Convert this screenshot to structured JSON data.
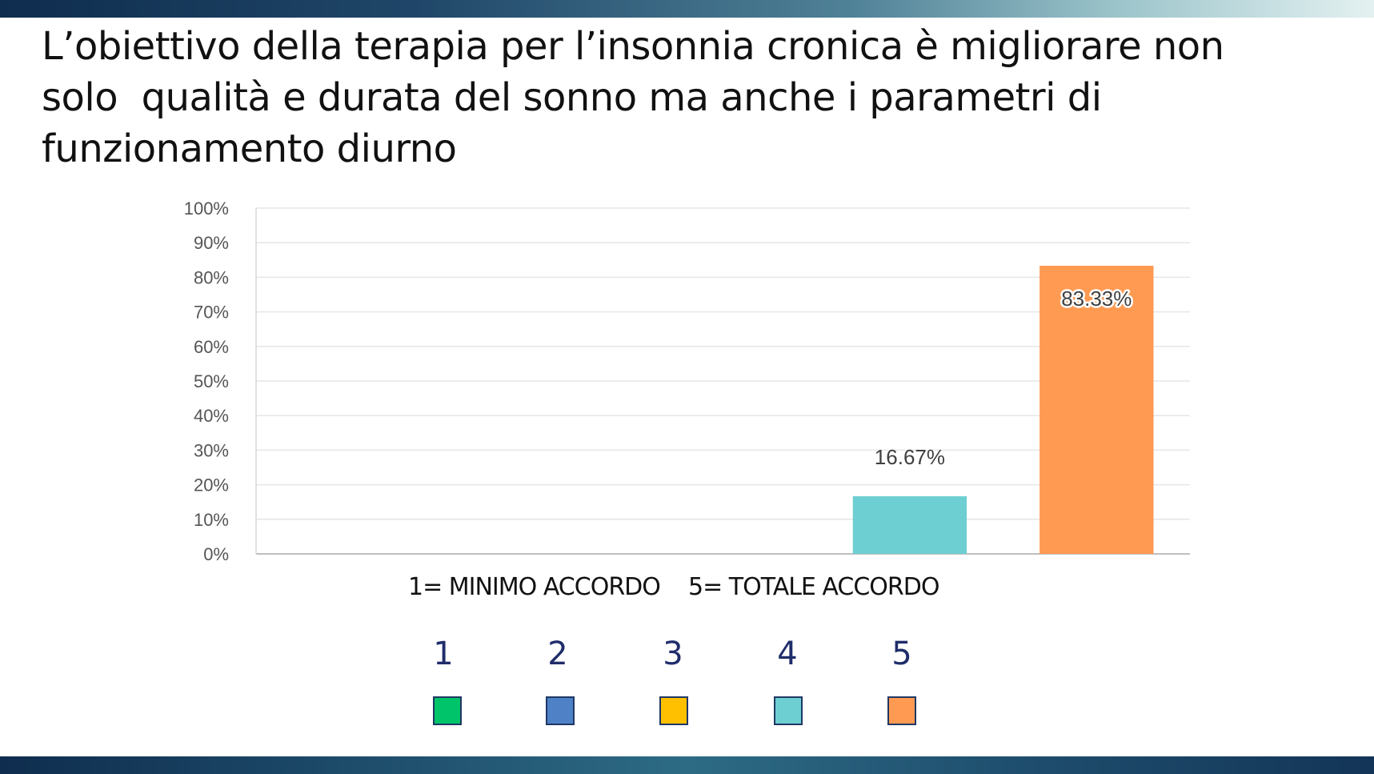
{
  "slide": {
    "title": "L’obiettivo della terapia per l’insonnia cronica è migliorare non\nsolo  qualità e durata del sonno ma anche i parametri di\nfunzionamento diurno"
  },
  "chart_data": {
    "type": "bar",
    "categories": [
      "1",
      "2",
      "3",
      "4",
      "5"
    ],
    "values": [
      0,
      0,
      0,
      16.67,
      83.33
    ],
    "data_labels": [
      "",
      "",
      "",
      "16.67%",
      "83.33%"
    ],
    "colors": [
      "#00c46a",
      "#4f81c7",
      "#ffc000",
      "#6ecfd2",
      "#ff9a52"
    ],
    "ylim": [
      0,
      100
    ],
    "yticks": [
      "0%",
      "10%",
      "20%",
      "30%",
      "40%",
      "50%",
      "60%",
      "70%",
      "80%",
      "90%",
      "100%"
    ],
    "grid": true,
    "xlabel": "",
    "ylabel": ""
  },
  "legend": {
    "caption_min": "1= MINIMO ACCORDO",
    "caption_max": "5= TOTALE ACCORDO",
    "items": [
      {
        "label": "1",
        "color": "#00c46a"
      },
      {
        "label": "2",
        "color": "#4f81c7"
      },
      {
        "label": "3",
        "color": "#ffc000"
      },
      {
        "label": "4",
        "color": "#6ecfd2"
      },
      {
        "label": "5",
        "color": "#ff9a52"
      }
    ]
  }
}
